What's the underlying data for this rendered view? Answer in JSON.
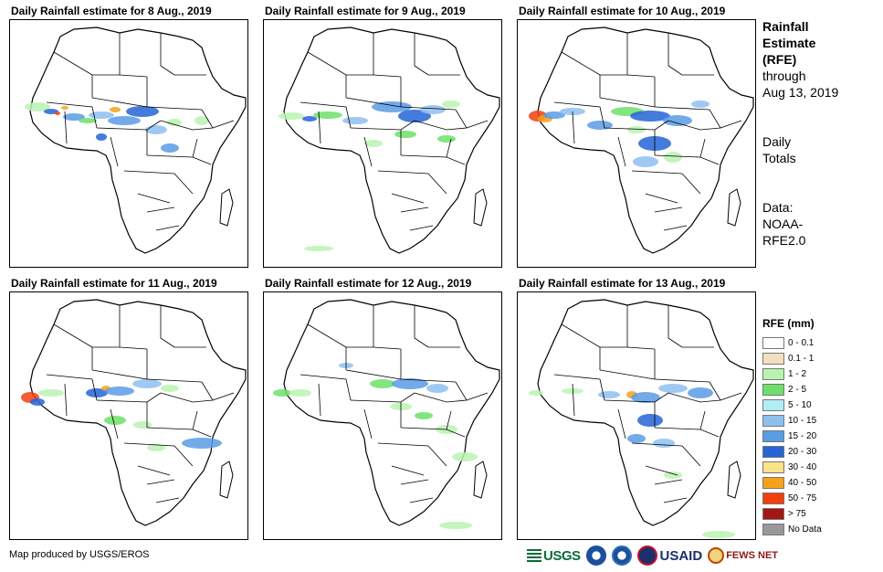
{
  "panels": [
    {
      "title": "Daily Rainfall estimate for 8 Aug., 2019"
    },
    {
      "title": "Daily Rainfall estimate for 9 Aug., 2019"
    },
    {
      "title": "Daily Rainfall estimate for 10 Aug., 2019"
    },
    {
      "title": "Daily Rainfall estimate for 11 Aug., 2019"
    },
    {
      "title": "Daily Rainfall estimate for 12 Aug., 2019"
    },
    {
      "title": "Daily Rainfall estimate for 13 Aug., 2019"
    }
  ],
  "side": {
    "title_lines": [
      "Rainfall",
      "Estimate",
      "(RFE)"
    ],
    "through_lines": [
      "through",
      "Aug 13, 2019"
    ],
    "totals_lines": [
      "Daily",
      "Totals"
    ],
    "data_lines": [
      "Data:",
      "NOAA-",
      "RFE2.0"
    ]
  },
  "legend": {
    "title": "RFE (mm)",
    "items": [
      {
        "label": "0 - 0.1",
        "color": "#ffffff"
      },
      {
        "label": "0.1 - 1",
        "color": "#f2dfc0"
      },
      {
        "label": "1 - 2",
        "color": "#b9f3b0"
      },
      {
        "label": "2 - 5",
        "color": "#6de06a"
      },
      {
        "label": "5 - 10",
        "color": "#b0eef7"
      },
      {
        "label": "10 - 15",
        "color": "#8ec0ee"
      },
      {
        "label": "15 - 20",
        "color": "#5a9be6"
      },
      {
        "label": "20 - 30",
        "color": "#2464d6"
      },
      {
        "label": "30 - 40",
        "color": "#fbe38a"
      },
      {
        "label": "40 - 50",
        "color": "#f5a21a"
      },
      {
        "label": "50 - 75",
        "color": "#f2400f"
      },
      {
        "label": "> 75",
        "color": "#a11812"
      },
      {
        "label": "No Data",
        "color": "#999999"
      }
    ]
  },
  "credit": "Map produced by USGS/EROS",
  "logos": {
    "usgs": "USGS",
    "usaid": "USAID",
    "fews": "FEWS NET"
  }
}
